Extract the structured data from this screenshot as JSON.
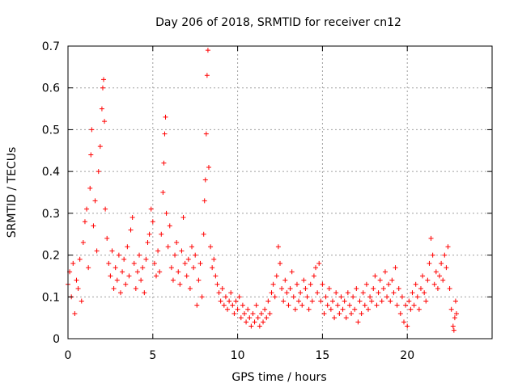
{
  "chart_data": {
    "type": "scatter",
    "title": "Day 206 of 2018, SRMTID for receiver cn12",
    "xlabel": "GPS time / hours",
    "ylabel": "SRMTID / TECUs",
    "xlim": [
      0,
      25
    ],
    "ylim": [
      0,
      0.7
    ],
    "xticks": [
      0,
      5,
      10,
      15,
      20
    ],
    "xtick_labels": [
      "0",
      "5",
      "10",
      "15",
      "20"
    ],
    "yticks": [
      0,
      0.1,
      0.2,
      0.3,
      0.4,
      0.5,
      0.6,
      0.7
    ],
    "ytick_labels": [
      "0",
      "0.1",
      "0.2",
      "0.3",
      "0.4",
      "0.5",
      "0.6",
      "0.7"
    ],
    "grid": true,
    "marker": "+",
    "series": [
      {
        "name": "SRMTID",
        "color": "#ff0000",
        "points": [
          [
            0.0,
            0.13
          ],
          [
            0.1,
            0.16
          ],
          [
            0.2,
            0.1
          ],
          [
            0.3,
            0.18
          ],
          [
            0.4,
            0.06
          ],
          [
            0.5,
            0.14
          ],
          [
            0.6,
            0.12
          ],
          [
            0.7,
            0.19
          ],
          [
            0.8,
            0.09
          ],
          [
            0.9,
            0.23
          ],
          [
            1.0,
            0.28
          ],
          [
            1.1,
            0.31
          ],
          [
            1.2,
            0.17
          ],
          [
            1.3,
            0.36
          ],
          [
            1.35,
            0.44
          ],
          [
            1.4,
            0.5
          ],
          [
            1.5,
            0.27
          ],
          [
            1.6,
            0.33
          ],
          [
            1.7,
            0.21
          ],
          [
            1.8,
            0.4
          ],
          [
            1.9,
            0.46
          ],
          [
            2.0,
            0.55
          ],
          [
            2.05,
            0.6
          ],
          [
            2.1,
            0.62
          ],
          [
            2.15,
            0.52
          ],
          [
            2.2,
            0.31
          ],
          [
            2.3,
            0.24
          ],
          [
            2.4,
            0.18
          ],
          [
            2.5,
            0.15
          ],
          [
            2.6,
            0.21
          ],
          [
            2.7,
            0.12
          ],
          [
            2.8,
            0.17
          ],
          [
            2.9,
            0.14
          ],
          [
            3.0,
            0.2
          ],
          [
            3.1,
            0.11
          ],
          [
            3.2,
            0.16
          ],
          [
            3.3,
            0.19
          ],
          [
            3.4,
            0.13
          ],
          [
            3.5,
            0.22
          ],
          [
            3.6,
            0.15
          ],
          [
            3.7,
            0.26
          ],
          [
            3.8,
            0.29
          ],
          [
            3.9,
            0.18
          ],
          [
            4.0,
            0.12
          ],
          [
            4.1,
            0.16
          ],
          [
            4.2,
            0.2
          ],
          [
            4.3,
            0.14
          ],
          [
            4.4,
            0.17
          ],
          [
            4.5,
            0.11
          ],
          [
            4.6,
            0.19
          ],
          [
            4.7,
            0.23
          ],
          [
            4.8,
            0.25
          ],
          [
            4.9,
            0.31
          ],
          [
            5.0,
            0.28
          ],
          [
            5.1,
            0.18
          ],
          [
            5.2,
            0.15
          ],
          [
            5.3,
            0.21
          ],
          [
            5.4,
            0.16
          ],
          [
            5.5,
            0.25
          ],
          [
            5.6,
            0.35
          ],
          [
            5.65,
            0.42
          ],
          [
            5.7,
            0.49
          ],
          [
            5.75,
            0.53
          ],
          [
            5.8,
            0.3
          ],
          [
            5.9,
            0.22
          ],
          [
            6.0,
            0.27
          ],
          [
            6.1,
            0.17
          ],
          [
            6.2,
            0.14
          ],
          [
            6.3,
            0.2
          ],
          [
            6.4,
            0.23
          ],
          [
            6.5,
            0.16
          ],
          [
            6.6,
            0.13
          ],
          [
            6.7,
            0.21
          ],
          [
            6.8,
            0.29
          ],
          [
            6.9,
            0.18
          ],
          [
            7.0,
            0.15
          ],
          [
            7.1,
            0.19
          ],
          [
            7.2,
            0.12
          ],
          [
            7.3,
            0.22
          ],
          [
            7.4,
            0.17
          ],
          [
            7.5,
            0.2
          ],
          [
            7.6,
            0.08
          ],
          [
            7.7,
            0.14
          ],
          [
            7.8,
            0.18
          ],
          [
            7.9,
            0.1
          ],
          [
            8.0,
            0.25
          ],
          [
            8.05,
            0.33
          ],
          [
            8.1,
            0.38
          ],
          [
            8.15,
            0.49
          ],
          [
            8.2,
            0.63
          ],
          [
            8.25,
            0.69
          ],
          [
            8.3,
            0.41
          ],
          [
            8.4,
            0.22
          ],
          [
            8.5,
            0.17
          ],
          [
            8.6,
            0.19
          ],
          [
            8.7,
            0.15
          ],
          [
            8.8,
            0.13
          ],
          [
            8.9,
            0.11
          ],
          [
            9.0,
            0.09
          ],
          [
            9.1,
            0.12
          ],
          [
            9.2,
            0.08
          ],
          [
            9.3,
            0.1
          ],
          [
            9.4,
            0.07
          ],
          [
            9.5,
            0.09
          ],
          [
            9.6,
            0.11
          ],
          [
            9.7,
            0.08
          ],
          [
            9.8,
            0.06
          ],
          [
            9.9,
            0.09
          ],
          [
            10.0,
            0.07
          ],
          [
            10.1,
            0.1
          ],
          [
            10.2,
            0.05
          ],
          [
            10.3,
            0.08
          ],
          [
            10.4,
            0.06
          ],
          [
            10.5,
            0.04
          ],
          [
            10.6,
            0.07
          ],
          [
            10.7,
            0.05
          ],
          [
            10.8,
            0.03
          ],
          [
            10.9,
            0.06
          ],
          [
            11.0,
            0.04
          ],
          [
            11.1,
            0.08
          ],
          [
            11.2,
            0.05
          ],
          [
            11.3,
            0.03
          ],
          [
            11.4,
            0.06
          ],
          [
            11.5,
            0.04
          ],
          [
            11.6,
            0.07
          ],
          [
            11.7,
            0.05
          ],
          [
            11.8,
            0.09
          ],
          [
            11.9,
            0.06
          ],
          [
            12.0,
            0.11
          ],
          [
            12.1,
            0.13
          ],
          [
            12.2,
            0.1
          ],
          [
            12.3,
            0.15
          ],
          [
            12.4,
            0.22
          ],
          [
            12.5,
            0.18
          ],
          [
            12.6,
            0.12
          ],
          [
            12.7,
            0.09
          ],
          [
            12.8,
            0.14
          ],
          [
            12.9,
            0.11
          ],
          [
            13.0,
            0.08
          ],
          [
            13.1,
            0.12
          ],
          [
            13.2,
            0.16
          ],
          [
            13.3,
            0.1
          ],
          [
            13.4,
            0.07
          ],
          [
            13.5,
            0.13
          ],
          [
            13.6,
            0.09
          ],
          [
            13.7,
            0.11
          ],
          [
            13.8,
            0.08
          ],
          [
            13.9,
            0.14
          ],
          [
            14.0,
            0.12
          ],
          [
            14.1,
            0.1
          ],
          [
            14.2,
            0.07
          ],
          [
            14.3,
            0.13
          ],
          [
            14.4,
            0.09
          ],
          [
            14.5,
            0.15
          ],
          [
            14.6,
            0.17
          ],
          [
            14.7,
            0.11
          ],
          [
            14.8,
            0.18
          ],
          [
            14.9,
            0.09
          ],
          [
            15.0,
            0.13
          ],
          [
            15.1,
            0.06
          ],
          [
            15.2,
            0.1
          ],
          [
            15.3,
            0.08
          ],
          [
            15.4,
            0.12
          ],
          [
            15.5,
            0.07
          ],
          [
            15.6,
            0.09
          ],
          [
            15.7,
            0.05
          ],
          [
            15.8,
            0.11
          ],
          [
            15.9,
            0.08
          ],
          [
            16.0,
            0.06
          ],
          [
            16.1,
            0.1
          ],
          [
            16.2,
            0.07
          ],
          [
            16.3,
            0.09
          ],
          [
            16.4,
            0.05
          ],
          [
            16.5,
            0.11
          ],
          [
            16.6,
            0.08
          ],
          [
            16.7,
            0.06
          ],
          [
            16.8,
            0.1
          ],
          [
            16.9,
            0.07
          ],
          [
            17.0,
            0.12
          ],
          [
            17.1,
            0.04
          ],
          [
            17.2,
            0.09
          ],
          [
            17.3,
            0.06
          ],
          [
            17.4,
            0.11
          ],
          [
            17.5,
            0.08
          ],
          [
            17.6,
            0.13
          ],
          [
            17.7,
            0.07
          ],
          [
            17.8,
            0.1
          ],
          [
            17.9,
            0.09
          ],
          [
            18.0,
            0.12
          ],
          [
            18.1,
            0.15
          ],
          [
            18.2,
            0.08
          ],
          [
            18.3,
            0.11
          ],
          [
            18.4,
            0.14
          ],
          [
            18.5,
            0.09
          ],
          [
            18.6,
            0.12
          ],
          [
            18.7,
            0.16
          ],
          [
            18.8,
            0.1
          ],
          [
            18.9,
            0.13
          ],
          [
            19.0,
            0.09
          ],
          [
            19.1,
            0.14
          ],
          [
            19.2,
            0.11
          ],
          [
            19.3,
            0.17
          ],
          [
            19.4,
            0.08
          ],
          [
            19.5,
            0.12
          ],
          [
            19.6,
            0.06
          ],
          [
            19.7,
            0.1
          ],
          [
            19.8,
            0.04
          ],
          [
            19.9,
            0.08
          ],
          [
            20.0,
            0.03
          ],
          [
            20.1,
            0.09
          ],
          [
            20.2,
            0.07
          ],
          [
            20.3,
            0.11
          ],
          [
            20.4,
            0.08
          ],
          [
            20.5,
            0.13
          ],
          [
            20.6,
            0.1
          ],
          [
            20.7,
            0.07
          ],
          [
            20.8,
            0.12
          ],
          [
            20.9,
            0.15
          ],
          [
            21.0,
            0.11
          ],
          [
            21.1,
            0.09
          ],
          [
            21.2,
            0.14
          ],
          [
            21.3,
            0.18
          ],
          [
            21.4,
            0.24
          ],
          [
            21.5,
            0.2
          ],
          [
            21.6,
            0.13
          ],
          [
            21.7,
            0.16
          ],
          [
            21.8,
            0.12
          ],
          [
            21.9,
            0.15
          ],
          [
            22.0,
            0.18
          ],
          [
            22.1,
            0.14
          ],
          [
            22.2,
            0.2
          ],
          [
            22.3,
            0.17
          ],
          [
            22.4,
            0.22
          ],
          [
            22.5,
            0.12
          ],
          [
            22.6,
            0.07
          ],
          [
            22.7,
            0.03
          ],
          [
            22.75,
            0.02
          ],
          [
            22.8,
            0.05
          ],
          [
            22.85,
            0.09
          ],
          [
            22.9,
            0.06
          ]
        ]
      }
    ]
  }
}
